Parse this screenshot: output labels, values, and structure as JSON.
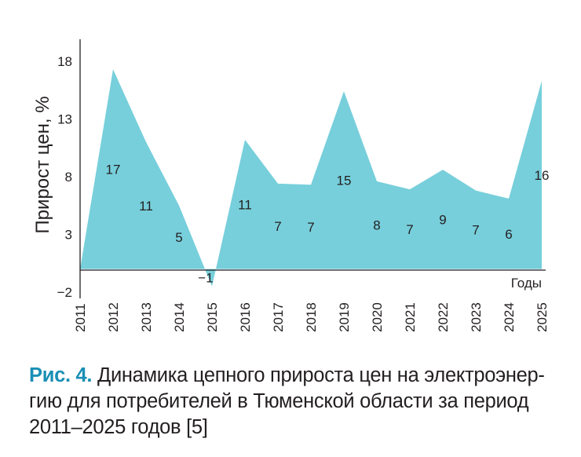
{
  "chart_data": {
    "type": "area",
    "ylabel": "Прирост цен, %",
    "xlabel": "Годы",
    "ylim": [
      -2,
      18
    ],
    "yticks": [
      -2,
      3,
      8,
      13,
      18
    ],
    "x": [
      "2011",
      "2012",
      "2013",
      "2014",
      "2015",
      "2016",
      "2017",
      "2018",
      "2019",
      "2020",
      "2021",
      "2022",
      "2023",
      "2024",
      "2025"
    ],
    "values": [
      0,
      17.3,
      11,
      5.5,
      -1.5,
      11.2,
      7.4,
      7.3,
      15.4,
      7.6,
      6.9,
      8.6,
      6.8,
      6.1,
      16.3
    ],
    "data_labels": [
      "",
      "17",
      "11",
      "5",
      "−1",
      "11",
      "7",
      "7",
      "15",
      "8",
      "7",
      "9",
      "7",
      "6",
      "16"
    ],
    "fill_color": "#77cfdb",
    "grid": false
  },
  "caption": {
    "fig": "Рис. 4.",
    "line1": " Динамика цепного прироста цен на электроэнер-",
    "line2": "гию для потребителей в Тюменской области за период",
    "line3": "2011–2025 годов [5]"
  }
}
